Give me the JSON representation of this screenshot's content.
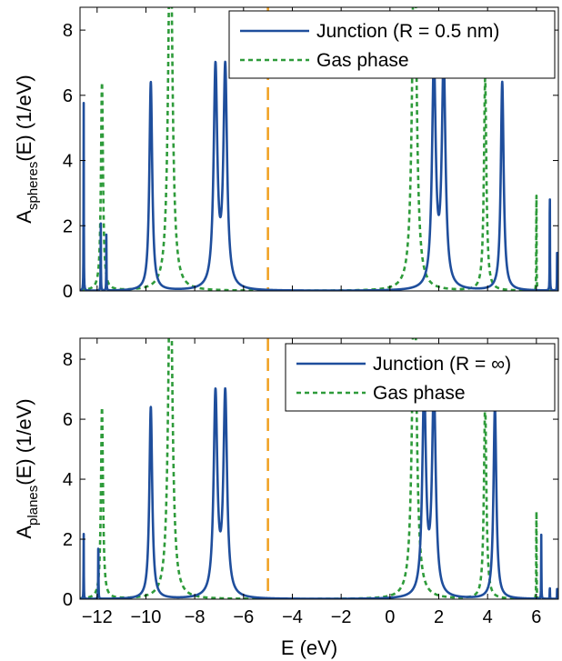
{
  "chart_data": [
    {
      "type": "line",
      "title": "",
      "xlabel": "",
      "ylabel_main": "A",
      "ylabel_sub": "spheres",
      "ylabel_rest": "(E) (1/eV)",
      "xlim": [
        -12.7,
        6.9
      ],
      "ylim": [
        0,
        8.7
      ],
      "y_ticks": [
        0,
        2,
        4,
        6,
        8
      ],
      "x_ticks": [],
      "x_tick_labels": [],
      "grid": false,
      "legend_position": "top-right",
      "fermi_level": -5.0,
      "series": [
        {
          "name": "Junction (R = 0.5 nm)",
          "style": "solid",
          "color": "#1f4e9c",
          "peaks": [
            {
              "x": -12.55,
              "height": 5.85,
              "width": 0.006
            },
            {
              "x": -11.85,
              "height": 2.25,
              "width": 0.006
            },
            {
              "x": -11.62,
              "height": 1.9,
              "width": 0.006
            },
            {
              "x": -9.8,
              "height": 6.4,
              "width": 0.07
            },
            {
              "x": -7.15,
              "height": 6.7,
              "width": 0.09
            },
            {
              "x": -6.75,
              "height": 6.7,
              "width": 0.09
            },
            {
              "x": 1.8,
              "height": 6.9,
              "width": 0.09
            },
            {
              "x": 2.2,
              "height": 6.9,
              "width": 0.09
            },
            {
              "x": 4.6,
              "height": 6.4,
              "width": 0.07
            },
            {
              "x": 6.55,
              "height": 3.6,
              "width": 0.006
            },
            {
              "x": 6.85,
              "height": 1.4,
              "width": 0.006
            }
          ]
        },
        {
          "name": "Gas phase",
          "style": "dashed",
          "color": "#2e9b3a",
          "peaks": [
            {
              "x": -11.8,
              "height": 6.4,
              "width": 0.05
            },
            {
              "x": -9.0,
              "height": 12.0,
              "width": 0.1
            },
            {
              "x": 1.0,
              "height": 12.0,
              "width": 0.1
            },
            {
              "x": 3.9,
              "height": 6.5,
              "width": 0.06
            },
            {
              "x": 6.0,
              "height": 3.6,
              "width": 0.006
            }
          ]
        }
      ]
    },
    {
      "type": "line",
      "title": "",
      "xlabel": "E (eV)",
      "ylabel_main": "A",
      "ylabel_sub": "planes",
      "ylabel_rest": "(E) (1/eV)",
      "xlim": [
        -12.7,
        6.9
      ],
      "ylim": [
        0,
        8.7
      ],
      "y_ticks": [
        0,
        2,
        4,
        6,
        8
      ],
      "x_ticks": [
        -12,
        -10,
        -8,
        -6,
        -4,
        -2,
        0,
        2,
        4,
        6
      ],
      "x_tick_labels": [
        "−12",
        "−10",
        "−8",
        "−6",
        "−4",
        "−2",
        "0",
        "2",
        "4",
        "6"
      ],
      "grid": false,
      "legend_position": "top-right",
      "fermi_level": -5.0,
      "series": [
        {
          "name": "Junction (R = ∞)",
          "style": "solid",
          "color": "#1f4e9c",
          "peaks": [
            {
              "x": -12.55,
              "height": 2.2,
              "width": 0.006
            },
            {
              "x": -11.95,
              "height": 2.3,
              "width": 0.006
            },
            {
              "x": -9.8,
              "height": 6.4,
              "width": 0.07
            },
            {
              "x": -7.15,
              "height": 6.7,
              "width": 0.09
            },
            {
              "x": -6.75,
              "height": 6.7,
              "width": 0.09
            },
            {
              "x": 1.4,
              "height": 6.9,
              "width": 0.09
            },
            {
              "x": 1.8,
              "height": 6.9,
              "width": 0.09
            },
            {
              "x": 4.3,
              "height": 6.4,
              "width": 0.07
            },
            {
              "x": 6.2,
              "height": 2.2,
              "width": 0.006
            },
            {
              "x": 6.55,
              "height": 0.45,
              "width": 0.006
            },
            {
              "x": 6.85,
              "height": 0.4,
              "width": 0.006
            }
          ]
        },
        {
          "name": "Gas phase",
          "style": "dashed",
          "color": "#2e9b3a",
          "peaks": [
            {
              "x": -11.8,
              "height": 6.4,
              "width": 0.05
            },
            {
              "x": -9.0,
              "height": 12.0,
              "width": 0.1
            },
            {
              "x": 1.0,
              "height": 12.0,
              "width": 0.1
            },
            {
              "x": 3.9,
              "height": 6.5,
              "width": 0.06
            },
            {
              "x": 6.0,
              "height": 3.6,
              "width": 0.006
            }
          ]
        }
      ]
    }
  ],
  "colors": {
    "junction": "#1f4e9c",
    "gas": "#2e9b3a",
    "fermi": "#f0a020"
  }
}
